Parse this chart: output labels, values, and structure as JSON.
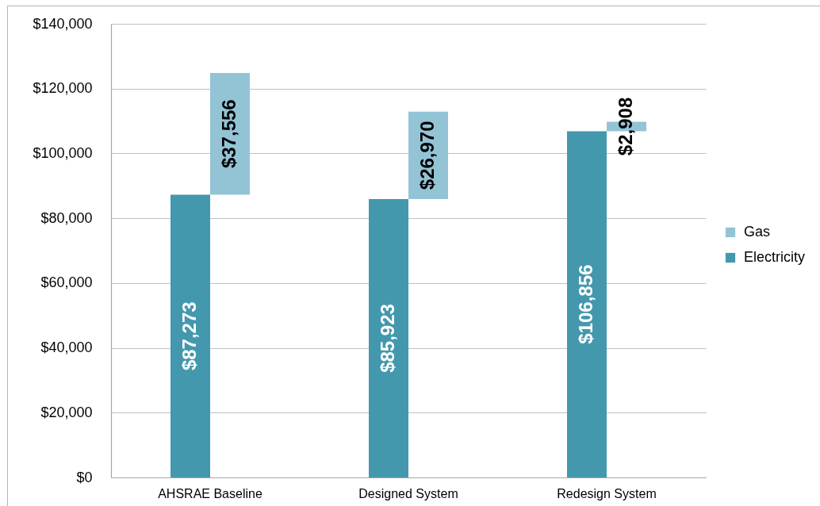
{
  "chart_data": {
    "type": "bar",
    "categories": [
      "AHSRAE Baseline",
      "Designed System",
      "Redesign System"
    ],
    "series": [
      {
        "name": "Electricity",
        "color": "#4398ae",
        "values": [
          87273,
          85923,
          106856
        ],
        "value_labels": [
          "$87,273",
          "$85,923",
          "$106,856"
        ]
      },
      {
        "name": "Gas",
        "color": "#93c4d6",
        "values": [
          37556,
          26970,
          2908
        ],
        "base": [
          87273,
          85923,
          106856
        ],
        "value_labels": [
          "$37,556",
          "$26,970",
          "$2,908"
        ]
      }
    ],
    "ylim": [
      0,
      140000
    ],
    "yticks": [
      {
        "value": 0,
        "label": "$0"
      },
      {
        "value": 20000,
        "label": "$20,000"
      },
      {
        "value": 40000,
        "label": "$40,000"
      },
      {
        "value": 60000,
        "label": "$60,000"
      },
      {
        "value": 80000,
        "label": "$80,000"
      },
      {
        "value": 100000,
        "label": "$100,000"
      },
      {
        "value": 120000,
        "label": "$120,000"
      },
      {
        "value": 140000,
        "label": "$140,000"
      }
    ],
    "grid": "y",
    "legend": "right"
  }
}
